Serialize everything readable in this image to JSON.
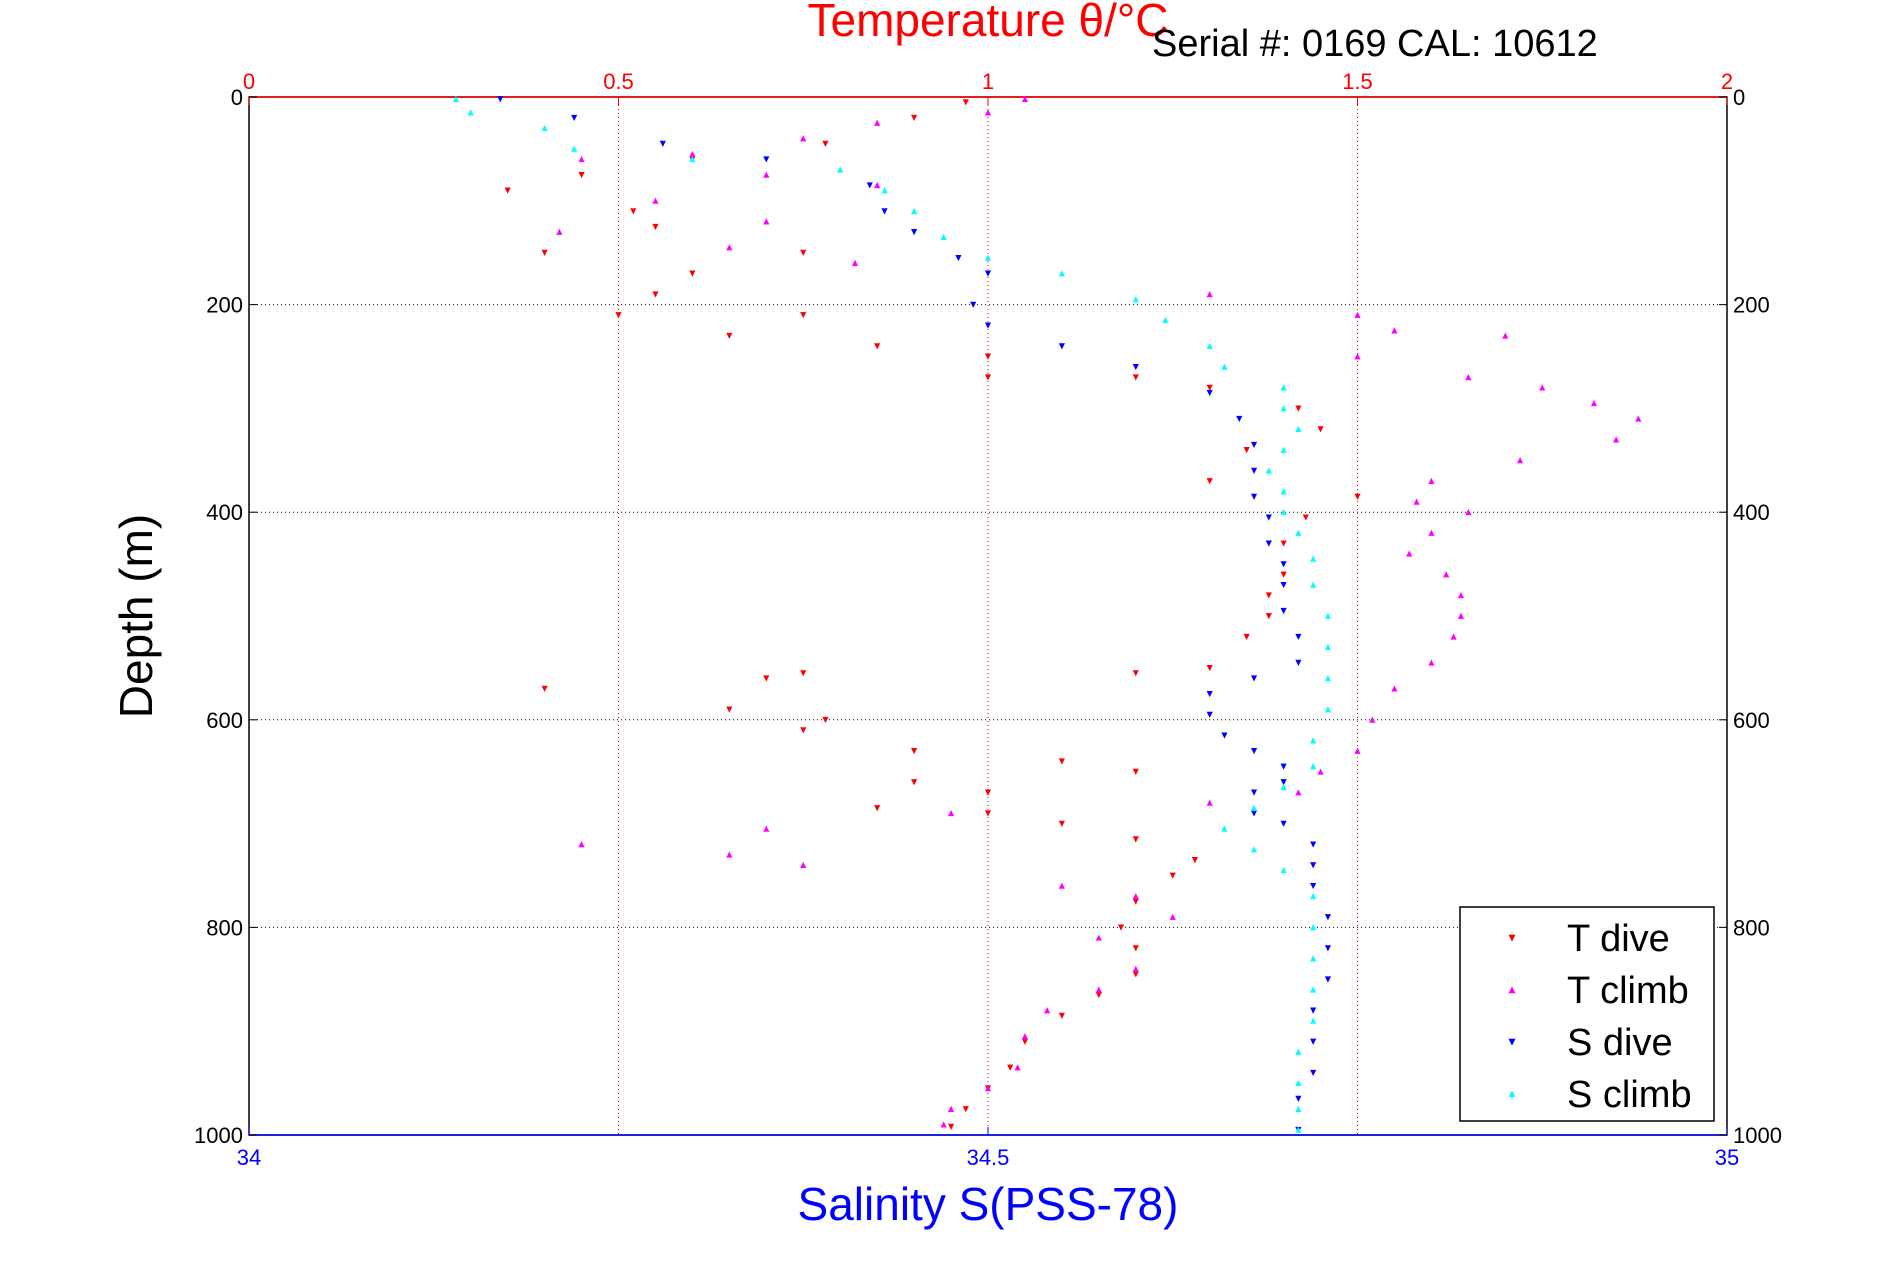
{
  "chart_data": {
    "type": "scatter",
    "title": "Temperature θ/°C",
    "annotation": "Serial #: 0169 CAL: 10612",
    "ylabel": "Depth (m)",
    "xlabel_bottom": "Salinity S(PSS-78)",
    "xlabel_top": "Temperature θ/°C",
    "ylim": [
      1000,
      0
    ],
    "y_ticks": [
      "0",
      "200",
      "400",
      "600",
      "800",
      "1000"
    ],
    "top_axis": {
      "range": [
        0,
        2
      ],
      "ticks": [
        "0",
        "0.5",
        "1",
        "1.5",
        "2"
      ],
      "color": "#ff0000"
    },
    "bottom_axis": {
      "range": [
        34,
        35
      ],
      "ticks": [
        "34",
        "34.5",
        "35"
      ],
      "color": "#0000ff"
    },
    "grid": true,
    "legend_position": "bottom-right",
    "series": [
      {
        "name": "T dive",
        "axis": "temperature",
        "color": "#ff0000",
        "marker": "triangle-down",
        "points": [
          [
            0.97,
            5
          ],
          [
            0.9,
            20
          ],
          [
            0.78,
            45
          ],
          [
            0.6,
            60
          ],
          [
            0.45,
            75
          ],
          [
            0.35,
            90
          ],
          [
            0.52,
            110
          ],
          [
            0.55,
            125
          ],
          [
            0.4,
            150
          ],
          [
            0.75,
            150
          ],
          [
            0.6,
            170
          ],
          [
            0.55,
            190
          ],
          [
            0.5,
            210
          ],
          [
            0.75,
            210
          ],
          [
            0.65,
            230
          ],
          [
            0.85,
            240
          ],
          [
            1.0,
            250
          ],
          [
            1.0,
            270
          ],
          [
            1.2,
            270
          ],
          [
            1.3,
            280
          ],
          [
            1.42,
            300
          ],
          [
            1.45,
            320
          ],
          [
            1.35,
            340
          ],
          [
            1.3,
            370
          ],
          [
            1.5,
            385
          ],
          [
            1.43,
            405
          ],
          [
            1.4,
            430
          ],
          [
            1.4,
            460
          ],
          [
            1.38,
            480
          ],
          [
            1.38,
            500
          ],
          [
            1.35,
            520
          ],
          [
            1.3,
            550
          ],
          [
            1.2,
            555
          ],
          [
            0.75,
            555
          ],
          [
            0.7,
            560
          ],
          [
            0.4,
            570
          ],
          [
            0.65,
            590
          ],
          [
            0.78,
            600
          ],
          [
            0.75,
            610
          ],
          [
            0.9,
            630
          ],
          [
            1.1,
            640
          ],
          [
            1.2,
            650
          ],
          [
            0.9,
            660
          ],
          [
            1.0,
            670
          ],
          [
            0.85,
            685
          ],
          [
            1.0,
            690
          ],
          [
            1.1,
            700
          ],
          [
            1.2,
            715
          ],
          [
            1.28,
            735
          ],
          [
            1.25,
            750
          ],
          [
            1.2,
            775
          ],
          [
            1.18,
            800
          ],
          [
            1.2,
            820
          ],
          [
            1.2,
            845
          ],
          [
            1.15,
            865
          ],
          [
            1.1,
            885
          ],
          [
            1.05,
            910
          ],
          [
            1.03,
            935
          ],
          [
            1.0,
            955
          ],
          [
            0.97,
            975
          ],
          [
            0.95,
            992
          ]
        ]
      },
      {
        "name": "T climb",
        "axis": "temperature",
        "color": "#ff00ff",
        "marker": "triangle-up",
        "points": [
          [
            1.05,
            2
          ],
          [
            1.0,
            15
          ],
          [
            0.85,
            25
          ],
          [
            0.75,
            40
          ],
          [
            0.6,
            55
          ],
          [
            0.45,
            60
          ],
          [
            0.7,
            75
          ],
          [
            0.85,
            85
          ],
          [
            0.55,
            100
          ],
          [
            0.7,
            120
          ],
          [
            0.42,
            130
          ],
          [
            0.65,
            145
          ],
          [
            0.82,
            160
          ],
          [
            1.3,
            190
          ],
          [
            1.5,
            210
          ],
          [
            1.55,
            225
          ],
          [
            1.7,
            230
          ],
          [
            1.5,
            250
          ],
          [
            1.65,
            270
          ],
          [
            1.75,
            280
          ],
          [
            1.82,
            295
          ],
          [
            1.88,
            310
          ],
          [
            1.85,
            330
          ],
          [
            1.72,
            350
          ],
          [
            1.6,
            370
          ],
          [
            1.58,
            390
          ],
          [
            1.65,
            400
          ],
          [
            1.6,
            420
          ],
          [
            1.57,
            440
          ],
          [
            1.62,
            460
          ],
          [
            1.64,
            480
          ],
          [
            1.64,
            500
          ],
          [
            1.63,
            520
          ],
          [
            1.6,
            545
          ],
          [
            1.55,
            570
          ],
          [
            1.52,
            600
          ],
          [
            1.5,
            630
          ],
          [
            1.45,
            650
          ],
          [
            1.42,
            670
          ],
          [
            1.3,
            680
          ],
          [
            0.95,
            690
          ],
          [
            0.7,
            705
          ],
          [
            0.45,
            720
          ],
          [
            0.65,
            730
          ],
          [
            0.75,
            740
          ],
          [
            1.1,
            760
          ],
          [
            1.2,
            770
          ],
          [
            1.25,
            790
          ],
          [
            1.15,
            810
          ],
          [
            1.2,
            840
          ],
          [
            1.15,
            860
          ],
          [
            1.08,
            880
          ],
          [
            1.05,
            905
          ],
          [
            1.04,
            935
          ],
          [
            1.0,
            955
          ],
          [
            0.95,
            975
          ],
          [
            0.94,
            990
          ]
        ]
      },
      {
        "name": "S dive",
        "axis": "salinity",
        "color": "#0000ff",
        "marker": "triangle-down",
        "points": [
          [
            34.17,
            2
          ],
          [
            34.22,
            20
          ],
          [
            34.28,
            45
          ],
          [
            34.35,
            60
          ],
          [
            34.42,
            85
          ],
          [
            34.43,
            110
          ],
          [
            34.45,
            130
          ],
          [
            34.48,
            155
          ],
          [
            34.5,
            170
          ],
          [
            34.49,
            200
          ],
          [
            34.5,
            220
          ],
          [
            34.55,
            240
          ],
          [
            34.6,
            260
          ],
          [
            34.65,
            285
          ],
          [
            34.67,
            310
          ],
          [
            34.68,
            335
          ],
          [
            34.68,
            360
          ],
          [
            34.68,
            385
          ],
          [
            34.69,
            405
          ],
          [
            34.69,
            430
          ],
          [
            34.7,
            450
          ],
          [
            34.7,
            470
          ],
          [
            34.7,
            495
          ],
          [
            34.71,
            520
          ],
          [
            34.71,
            545
          ],
          [
            34.68,
            560
          ],
          [
            34.65,
            575
          ],
          [
            34.65,
            595
          ],
          [
            34.66,
            615
          ],
          [
            34.68,
            630
          ],
          [
            34.7,
            645
          ],
          [
            34.7,
            660
          ],
          [
            34.68,
            670
          ],
          [
            34.68,
            690
          ],
          [
            34.7,
            700
          ],
          [
            34.72,
            720
          ],
          [
            34.72,
            740
          ],
          [
            34.72,
            760
          ],
          [
            34.73,
            790
          ],
          [
            34.73,
            820
          ],
          [
            34.73,
            850
          ],
          [
            34.72,
            880
          ],
          [
            34.72,
            910
          ],
          [
            34.72,
            940
          ],
          [
            34.71,
            965
          ],
          [
            34.71,
            995
          ]
        ]
      },
      {
        "name": "S climb",
        "axis": "salinity",
        "color": "#00ffff",
        "marker": "triangle-up",
        "points": [
          [
            34.14,
            2
          ],
          [
            34.15,
            15
          ],
          [
            34.2,
            30
          ],
          [
            34.22,
            50
          ],
          [
            34.3,
            60
          ],
          [
            34.4,
            70
          ],
          [
            34.43,
            90
          ],
          [
            34.45,
            110
          ],
          [
            34.47,
            135
          ],
          [
            34.5,
            155
          ],
          [
            34.55,
            170
          ],
          [
            34.6,
            195
          ],
          [
            34.62,
            215
          ],
          [
            34.65,
            240
          ],
          [
            34.66,
            260
          ],
          [
            34.7,
            280
          ],
          [
            34.7,
            300
          ],
          [
            34.71,
            320
          ],
          [
            34.7,
            340
          ],
          [
            34.69,
            360
          ],
          [
            34.7,
            380
          ],
          [
            34.7,
            400
          ],
          [
            34.71,
            420
          ],
          [
            34.72,
            445
          ],
          [
            34.72,
            470
          ],
          [
            34.73,
            500
          ],
          [
            34.73,
            530
          ],
          [
            34.73,
            560
          ],
          [
            34.73,
            590
          ],
          [
            34.72,
            620
          ],
          [
            34.72,
            645
          ],
          [
            34.7,
            665
          ],
          [
            34.68,
            685
          ],
          [
            34.66,
            705
          ],
          [
            34.68,
            725
          ],
          [
            34.7,
            745
          ],
          [
            34.72,
            770
          ],
          [
            34.72,
            800
          ],
          [
            34.72,
            830
          ],
          [
            34.72,
            860
          ],
          [
            34.72,
            890
          ],
          [
            34.71,
            920
          ],
          [
            34.71,
            950
          ],
          [
            34.71,
            975
          ],
          [
            34.71,
            995
          ]
        ]
      }
    ]
  }
}
